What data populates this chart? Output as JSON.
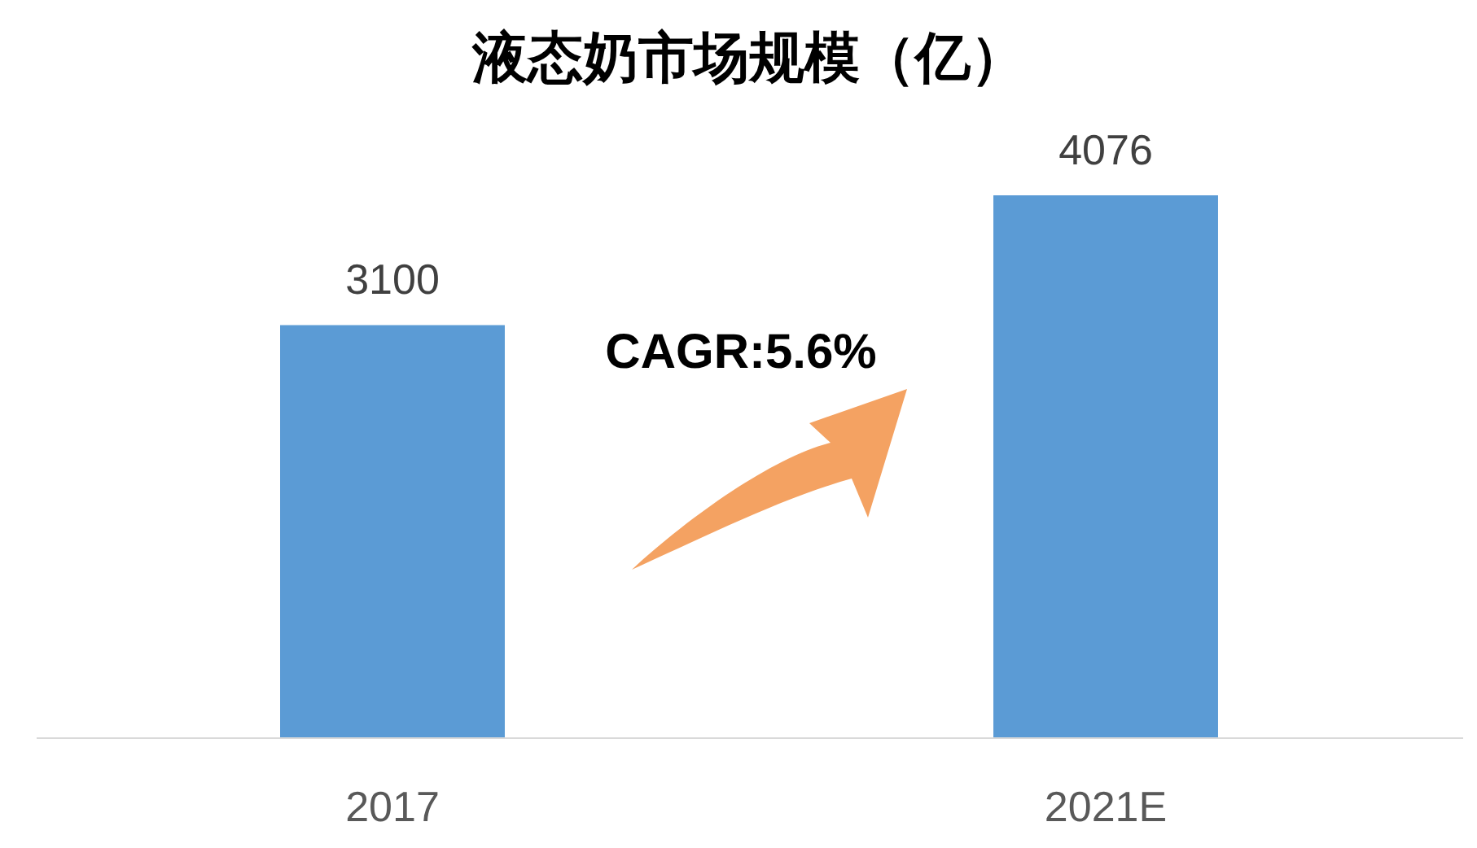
{
  "chart_data": {
    "type": "bar",
    "title": "液态奶市场规模（亿）",
    "categories": [
      "2017",
      "2021E"
    ],
    "values": [
      3100,
      4076
    ],
    "color": "#5b9bd5",
    "data_labels": true,
    "annotations": [
      "CAGR:5.6%"
    ]
  }
}
